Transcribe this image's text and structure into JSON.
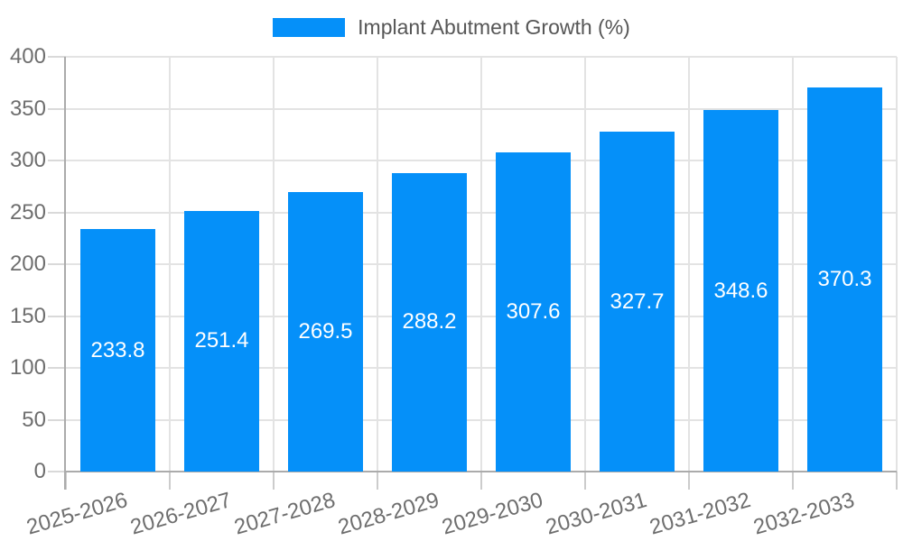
{
  "chart_data": {
    "type": "bar",
    "title": "",
    "xlabel": "",
    "ylabel": "",
    "categories": [
      "2025-2026",
      "2026-2027",
      "2027-2028",
      "2028-2029",
      "2029-2030",
      "2030-2031",
      "2031-2032",
      "2032-2033"
    ],
    "series": [
      {
        "name": "Implant Abutment Growth (%)",
        "color": "#0590F9",
        "values": [
          233.8,
          251.4,
          269.5,
          288.2,
          307.6,
          327.7,
          348.6,
          370.3
        ]
      }
    ],
    "ylim": [
      0,
      400
    ],
    "ytick_step": 50,
    "yticks": [
      0,
      50,
      100,
      150,
      200,
      250,
      300,
      350,
      400
    ],
    "grid": true,
    "legend_position": "top-center",
    "value_labels_position": "inside-center",
    "value_labels_color": "#ffffff"
  },
  "styles": {
    "background": "#ffffff",
    "grid_color": "#e3e3e3",
    "tick_color": "#cccccc",
    "axis_color": "#ababab",
    "axis_label_color": "#6e6e6e",
    "legend_text_color": "#565656"
  }
}
